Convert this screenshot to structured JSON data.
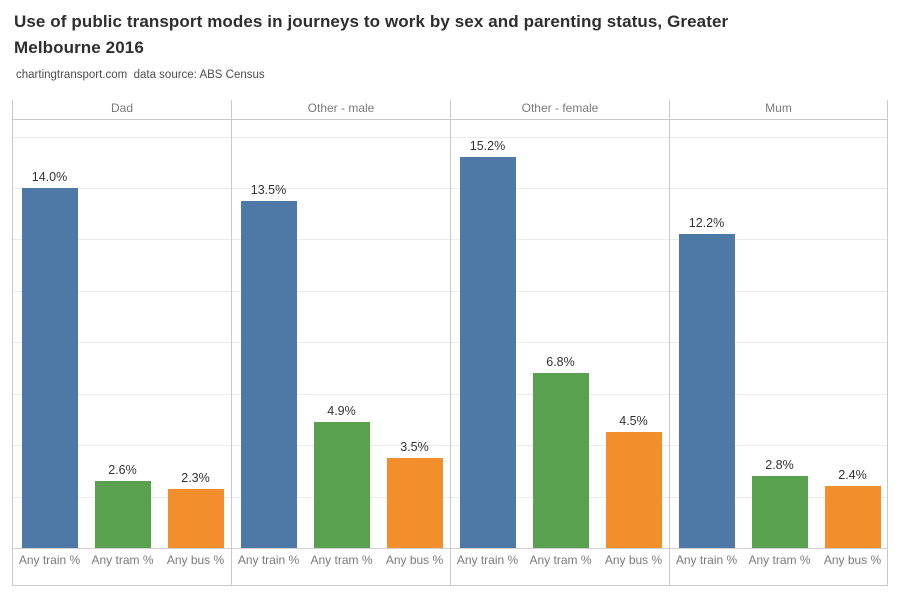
{
  "header": {
    "title_line1": "Use of public transport modes in journeys to work by sex and parenting status, Greater",
    "title_line2": "Melbourne 2016",
    "subtitle": "chartingtransport.com  data source: ABS Census"
  },
  "chart_data": {
    "type": "bar",
    "title": "Use of public transport modes in journeys to work by sex and parenting status, Greater Melbourne 2016",
    "subtitle": "chartingtransport.com  data source: ABS Census",
    "categories": [
      "Any train %",
      "Any tram %",
      "Any bus %"
    ],
    "facets": [
      {
        "label": "Dad",
        "values": [
          14.0,
          2.6,
          2.3
        ],
        "labels": [
          "14.0%",
          "2.6%",
          "2.3%"
        ]
      },
      {
        "label": "Other - male",
        "values": [
          13.5,
          4.9,
          3.5
        ],
        "labels": [
          "13.5%",
          "4.9%",
          "3.5%"
        ]
      },
      {
        "label": "Other - female",
        "values": [
          15.2,
          6.8,
          4.5
        ],
        "labels": [
          "15.2%",
          "6.8%",
          "4.5%"
        ]
      },
      {
        "label": "Mum",
        "values": [
          12.2,
          2.8,
          2.4
        ],
        "labels": [
          "12.2%",
          "2.8%",
          "2.4%"
        ]
      }
    ],
    "series_colors": [
      "#4e79a7",
      "#59a14f",
      "#f28e2b"
    ],
    "xlabel": "",
    "ylabel": "",
    "ylim": [
      0,
      16.65
    ],
    "gridline_step": 2,
    "grid": "on",
    "legend": "none"
  }
}
